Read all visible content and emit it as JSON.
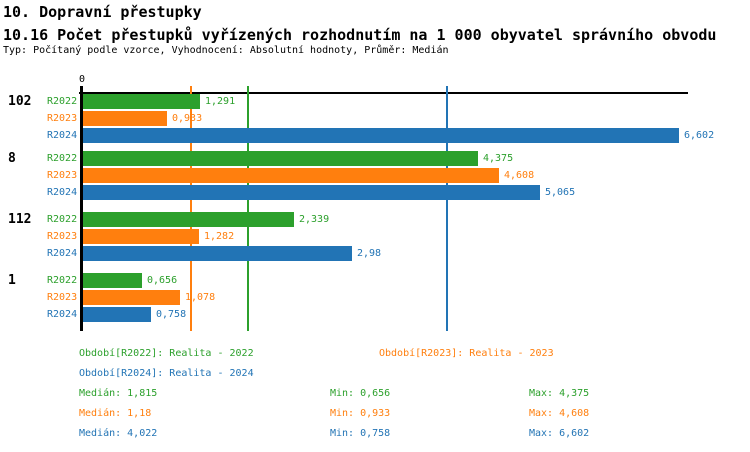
{
  "header": {
    "title": "10. Dopravní přestupky",
    "subtitle": "10.16 Počet přestupků vyřízených rozhodnutím na 1 000 obyvatel správního obvodu",
    "meta": "Typ: Počítaný podle vzorce, Vyhodnocení: Absolutní hodnoty, Průměr: Medián"
  },
  "colors": {
    "r2022": "#2CA02C",
    "r2023": "#FF7F0E",
    "r2024": "#2274B5",
    "axis": "#000000"
  },
  "chart_data": {
    "type": "bar",
    "orientation": "horizontal",
    "title": "",
    "xlabel": "",
    "ylabel": "",
    "x_zero_label": "0",
    "xlim": [
      0,
      6.72
    ],
    "grid": false,
    "legend_position": "bottom",
    "categories": [
      "102",
      "8",
      "112",
      "1"
    ],
    "series": [
      {
        "name": "R2022",
        "color": "#2CA02C",
        "median": 1.815,
        "values": [
          1.291,
          4.375,
          2.339,
          0.656
        ],
        "value_labels": [
          "1,291",
          "4,375",
          "2,339",
          "0,656"
        ]
      },
      {
        "name": "R2023",
        "color": "#FF7F0E",
        "median": 1.18,
        "values": [
          0.933,
          4.608,
          1.282,
          1.078
        ],
        "value_labels": [
          "0,933",
          "4,608",
          "1,282",
          "1,078"
        ]
      },
      {
        "name": "R2024",
        "color": "#2274B5",
        "median": 4.022,
        "values": [
          6.602,
          5.065,
          2.98,
          0.758
        ],
        "value_labels": [
          "6,602",
          "5,065",
          "2,98",
          "0,758"
        ]
      }
    ]
  },
  "legend": [
    {
      "series": "R2022",
      "color": "#2CA02C",
      "label": "Období[R2022]: Realita - 2022"
    },
    {
      "series": "R2023",
      "color": "#FF7F0E",
      "label": "Období[R2023]: Realita - 2023"
    },
    {
      "series": "R2024",
      "color": "#2274B5",
      "label": "Období[R2024]: Realita - 2024"
    }
  ],
  "stats": [
    {
      "series": "R2022",
      "color": "#2CA02C",
      "median": "Medián: 1,815",
      "min": "Min: 0,656",
      "max": "Max: 4,375"
    },
    {
      "series": "R2023",
      "color": "#FF7F0E",
      "median": "Medián: 1,18",
      "min": "Min: 0,933",
      "max": "Max: 4,608"
    },
    {
      "series": "R2024",
      "color": "#2274B5",
      "median": "Medián: 4,022",
      "min": "Min: 0,758",
      "max": "Max: 6,602"
    }
  ]
}
